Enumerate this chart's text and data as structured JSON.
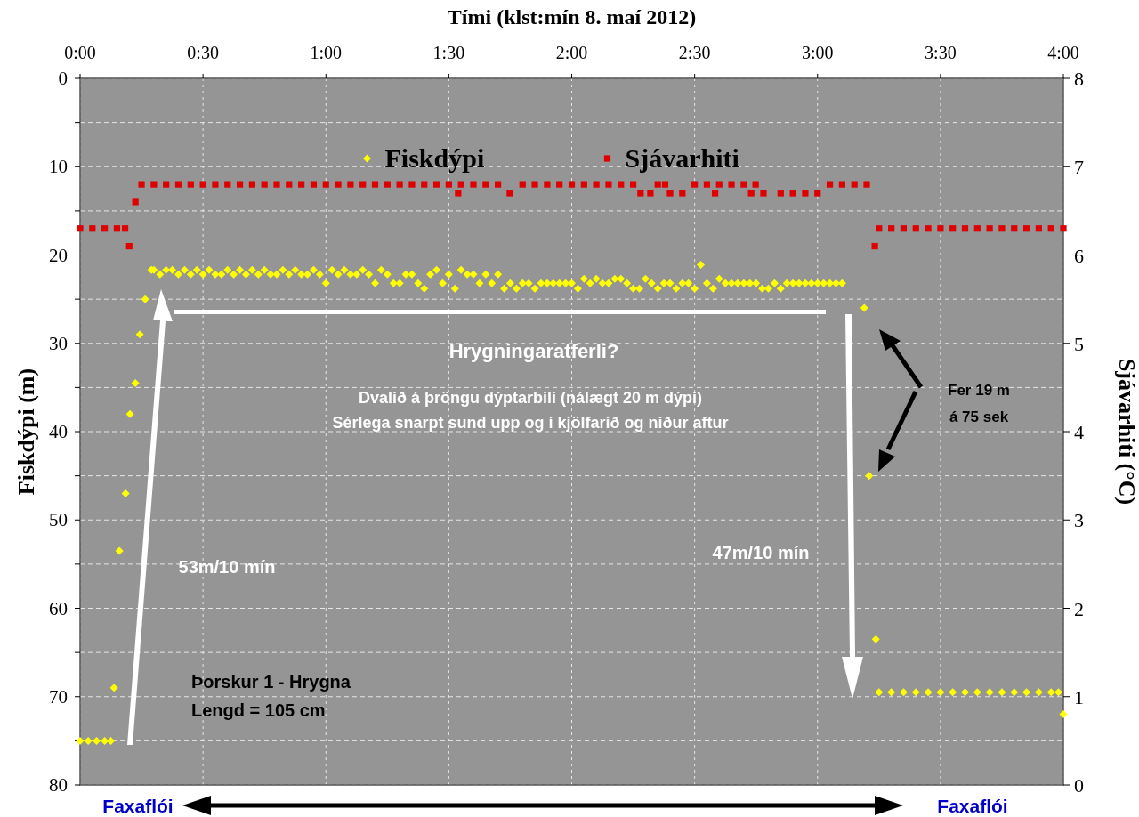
{
  "chart_data": {
    "type": "scatter",
    "xlabel": "Tími (klst:mín 8. maí 2012)",
    "ylabel": "Fiskdýpi (m)",
    "y2label": "Sjávarhiti (°C)",
    "xlim": [
      0,
      4
    ],
    "xticks": [
      {
        "value": 0,
        "label": "0:00"
      },
      {
        "value": 0.5,
        "label": "0:30"
      },
      {
        "value": 1,
        "label": "1:00"
      },
      {
        "value": 1.5,
        "label": "1:30"
      },
      {
        "value": 2,
        "label": "2:00"
      },
      {
        "value": 2.5,
        "label": "2:30"
      },
      {
        "value": 3,
        "label": "3:00"
      },
      {
        "value": 3.5,
        "label": "3:30"
      },
      {
        "value": 4,
        "label": "4:00"
      }
    ],
    "ylim": [
      80,
      0
    ],
    "yticks": [
      0,
      {
        "value": 5,
        "label": null
      },
      10,
      {
        "value": 15,
        "label": null
      },
      20,
      {
        "value": 25,
        "label": null
      },
      30,
      {
        "value": 35,
        "label": null
      },
      40,
      {
        "value": 45,
        "label": null
      },
      50,
      {
        "value": 55,
        "label": null
      },
      60,
      {
        "value": 65,
        "label": null
      },
      70,
      {
        "value": 75,
        "label": null
      },
      80
    ],
    "y2lim": [
      0,
      8
    ],
    "y2ticks": [
      0,
      1,
      2,
      3,
      4,
      5,
      6,
      7,
      8
    ],
    "grid": true,
    "legend": "top",
    "series": [
      {
        "name": "Fiskdýpi",
        "color": "#ffff00",
        "marker": "diamond",
        "x": [
          0,
          0.033,
          0.067,
          0.1,
          0.125,
          0.138,
          0.16,
          0.185,
          0.203,
          0.225,
          0.243,
          0.265,
          0.29,
          0.3,
          0.325,
          0.35,
          0.375,
          0.4,
          0.425,
          0.45,
          0.475,
          0.5,
          0.525,
          0.55,
          0.575,
          0.6,
          0.625,
          0.65,
          0.675,
          0.7,
          0.725,
          0.75,
          0.775,
          0.8,
          0.825,
          0.85,
          0.875,
          0.9,
          0.925,
          0.95,
          0.975,
          1.0,
          1.025,
          1.05,
          1.075,
          1.1,
          1.125,
          1.15,
          1.175,
          1.2,
          1.225,
          1.25,
          1.275,
          1.3,
          1.325,
          1.35,
          1.375,
          1.4,
          1.425,
          1.45,
          1.475,
          1.5,
          1.525,
          1.55,
          1.575,
          1.6,
          1.625,
          1.65,
          1.675,
          1.7,
          1.725,
          1.75,
          1.775,
          1.8,
          1.825,
          1.85,
          1.875,
          1.9,
          1.925,
          1.95,
          1.975,
          2.0,
          2.025,
          2.05,
          2.075,
          2.1,
          2.125,
          2.15,
          2.175,
          2.2,
          2.225,
          2.25,
          2.275,
          2.3,
          2.325,
          2.35,
          2.375,
          2.4,
          2.425,
          2.45,
          2.475,
          2.5,
          2.525,
          2.55,
          2.575,
          2.6,
          2.625,
          2.65,
          2.675,
          2.7,
          2.725,
          2.75,
          2.775,
          2.8,
          2.825,
          2.85,
          2.875,
          2.9,
          2.925,
          2.95,
          2.975,
          3.0,
          3.025,
          3.05,
          3.075,
          3.1,
          3.19,
          3.21,
          3.237,
          3.25,
          3.3,
          3.35,
          3.4,
          3.45,
          3.5,
          3.55,
          3.6,
          3.65,
          3.7,
          3.75,
          3.8,
          3.85,
          3.9,
          3.95,
          3.98,
          4.0
        ],
        "values": [
          75,
          75,
          75,
          75,
          75,
          69,
          53.5,
          47,
          38,
          34.5,
          29,
          25,
          21.7,
          21.7,
          22.2,
          21.7,
          21.7,
          22.2,
          21.7,
          22.2,
          21.7,
          22.2,
          21.7,
          22.2,
          22.2,
          21.7,
          22.2,
          21.7,
          22.2,
          21.7,
          22.2,
          21.7,
          22.2,
          22.2,
          21.7,
          22.2,
          21.7,
          22.2,
          22.2,
          21.7,
          22.2,
          23.2,
          21.7,
          22.2,
          21.7,
          22.2,
          22.2,
          21.7,
          22.2,
          23.2,
          21.7,
          22.2,
          23.2,
          23.2,
          22.2,
          22.2,
          23.2,
          23.8,
          22.2,
          21.7,
          23.2,
          22.2,
          23.8,
          21.7,
          22.2,
          22.2,
          23.2,
          22.2,
          23.2,
          22.2,
          23.8,
          23.2,
          23.8,
          23.2,
          23.2,
          23.8,
          23.2,
          23.2,
          23.2,
          23.2,
          23.2,
          23.2,
          23.8,
          22.7,
          23.2,
          22.7,
          23.2,
          23.2,
          22.7,
          22.7,
          23.2,
          23.8,
          23.8,
          22.7,
          23.2,
          23.8,
          23.2,
          23.2,
          23.8,
          23.2,
          23.2,
          23.8,
          21.1,
          23.2,
          23.8,
          22.7,
          23.2,
          23.2,
          23.2,
          23.2,
          23.2,
          23.2,
          23.8,
          23.8,
          23.2,
          23.8,
          23.2,
          23.2,
          23.2,
          23.2,
          23.2,
          23.2,
          23.2,
          23.2,
          23.2,
          23.2,
          26,
          45,
          63.5,
          69.5,
          69.5,
          69.5,
          69.5,
          69.5,
          69.5,
          69.5,
          69.5,
          69.5,
          69.5,
          69.5,
          69.5,
          69.5,
          69.5,
          69.5,
          69.5,
          72
        ]
      },
      {
        "name": "Sjávarhiti",
        "color": "#e00000",
        "marker": "square",
        "axis": "y2",
        "x": [
          0,
          0.05,
          0.1,
          0.15,
          0.183,
          0.2,
          0.225,
          0.25,
          0.3,
          0.35,
          0.4,
          0.45,
          0.5,
          0.55,
          0.6,
          0.65,
          0.7,
          0.75,
          0.8,
          0.85,
          0.9,
          0.95,
          1.0,
          1.05,
          1.1,
          1.15,
          1.2,
          1.25,
          1.3,
          1.35,
          1.4,
          1.45,
          1.5,
          1.538,
          1.55,
          1.6,
          1.65,
          1.7,
          1.748,
          1.8,
          1.85,
          1.9,
          1.95,
          2.0,
          2.05,
          2.1,
          2.15,
          2.2,
          2.25,
          2.28,
          2.32,
          2.35,
          2.38,
          2.4,
          2.45,
          2.5,
          2.55,
          2.583,
          2.6,
          2.65,
          2.7,
          2.73,
          2.748,
          2.78,
          2.85,
          2.9,
          2.95,
          3.0,
          3.05,
          3.1,
          3.15,
          3.2,
          3.233,
          3.25,
          3.3,
          3.35,
          3.4,
          3.45,
          3.5,
          3.55,
          3.6,
          3.65,
          3.7,
          3.75,
          3.8,
          3.85,
          3.9,
          3.95,
          4.0
        ],
        "values": [
          6.3,
          6.3,
          6.3,
          6.3,
          6.3,
          6.1,
          6.6,
          6.8,
          6.8,
          6.8,
          6.8,
          6.8,
          6.8,
          6.8,
          6.8,
          6.8,
          6.8,
          6.8,
          6.8,
          6.8,
          6.8,
          6.8,
          6.8,
          6.8,
          6.8,
          6.8,
          6.8,
          6.8,
          6.8,
          6.8,
          6.8,
          6.8,
          6.8,
          6.7,
          6.8,
          6.8,
          6.8,
          6.8,
          6.7,
          6.8,
          6.8,
          6.8,
          6.8,
          6.8,
          6.8,
          6.8,
          6.8,
          6.8,
          6.8,
          6.7,
          6.7,
          6.8,
          6.8,
          6.7,
          6.7,
          6.8,
          6.8,
          6.7,
          6.8,
          6.8,
          6.8,
          6.7,
          6.8,
          6.7,
          6.7,
          6.7,
          6.7,
          6.7,
          6.8,
          6.8,
          6.8,
          6.8,
          6.1,
          6.3,
          6.3,
          6.3,
          6.3,
          6.3,
          6.3,
          6.3,
          6.3,
          6.3,
          6.3,
          6.3,
          6.3,
          6.3,
          6.3,
          6.3,
          6.3
        ]
      }
    ],
    "annotations": [
      "Hrygningaratferli?",
      "Dvalið á þröngu dýptarbili (nálægt 20 m dýpi)",
      "Sérlega snarpt sund upp og í kjölfarið og niður aftur",
      "53m/10 mín",
      "47m/10 mín",
      "Fer 19 m",
      "á 75 sek",
      "Þorskur 1 - Hrygna",
      "Lengd = 105 cm",
      "Faxaflói",
      "Faxaflói"
    ]
  }
}
